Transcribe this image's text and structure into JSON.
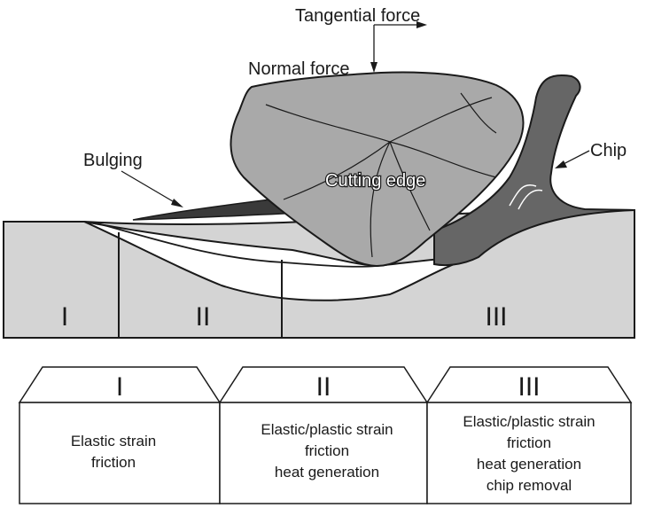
{
  "labels": {
    "tangential_force": "Tangential force",
    "normal_force": "Normal force",
    "bulging": "Bulging",
    "chip": "Chip",
    "cutting_edge": "Cutting edge"
  },
  "zones": [
    {
      "numeral": "I"
    },
    {
      "numeral": "II"
    },
    {
      "numeral": "III"
    }
  ],
  "legend_boxes": [
    {
      "numeral": "I",
      "lines": [
        "Elastic strain",
        "friction"
      ]
    },
    {
      "numeral": "II",
      "lines": [
        "Elastic/plastic strain",
        "friction",
        "heat generation"
      ]
    },
    {
      "numeral": "III",
      "lines": [
        "Elastic/plastic strain",
        "friction",
        "heat generation",
        "chip removal"
      ]
    }
  ],
  "colors": {
    "workpiece": "#d4d4d4",
    "tool": "#a9a9a9",
    "chip": "#666666",
    "bulge": "#3a3a3a",
    "outline": "#1a1a1a"
  }
}
